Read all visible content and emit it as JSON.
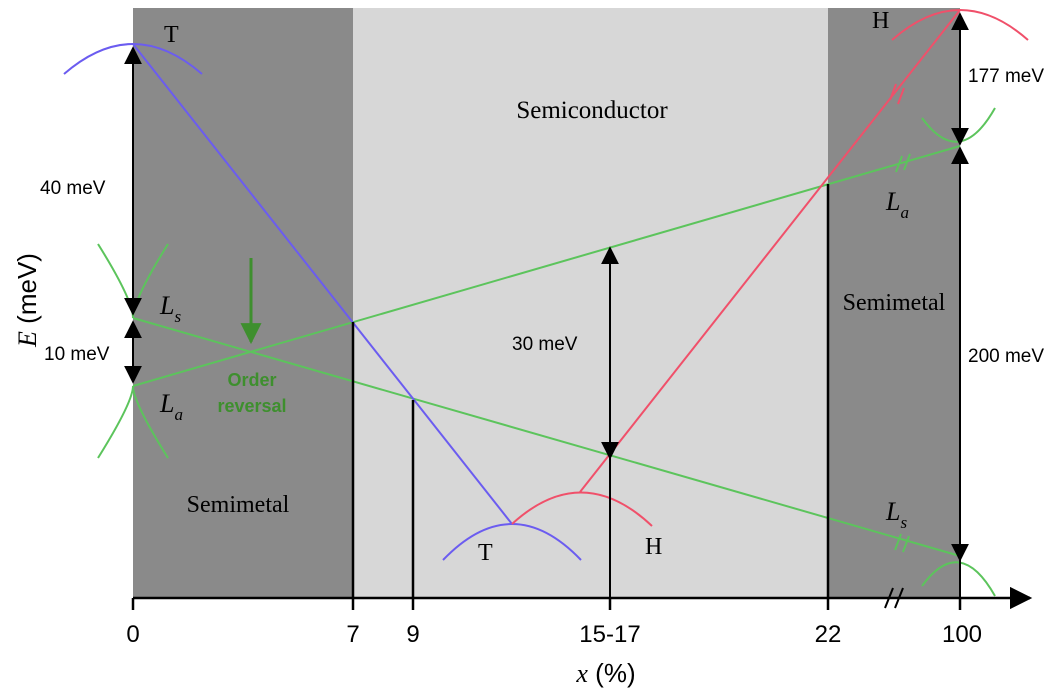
{
  "regions": {
    "left": "Semimetal",
    "middle": "Semiconductor",
    "right": "Semimetal"
  },
  "axes": {
    "y_symbol": "E",
    "y_unit": "(meV)",
    "x_symbol": "x",
    "x_unit": "(%)",
    "x_ticks": [
      "0",
      "7",
      "9",
      "15-17",
      "22",
      "100"
    ]
  },
  "band_labels": {
    "T_top": "T",
    "T_bottom": "T",
    "H_top": "H",
    "H_bottom": "H",
    "Ls_left": "L",
    "Ls_left_sub": "s",
    "La_left": "L",
    "La_left_sub": "a",
    "La_right": "L",
    "La_right_sub": "a",
    "Ls_right": "L",
    "Ls_right_sub": "s"
  },
  "gaps": {
    "left_top": "40 meV",
    "left_bottom": "10 meV",
    "middle": "30 meV",
    "right_top": "177 meV",
    "right_bottom": "200 meV"
  },
  "annotation": {
    "line1": "Order",
    "line2": "reversal"
  },
  "colors": {
    "blue": "#6b5cf0",
    "red": "#f0506a",
    "green": "#5cc45c",
    "dark_green": "#3e8f2e",
    "dark_gray": "#8a8a8a",
    "light_gray": "#d7d7d7"
  }
}
